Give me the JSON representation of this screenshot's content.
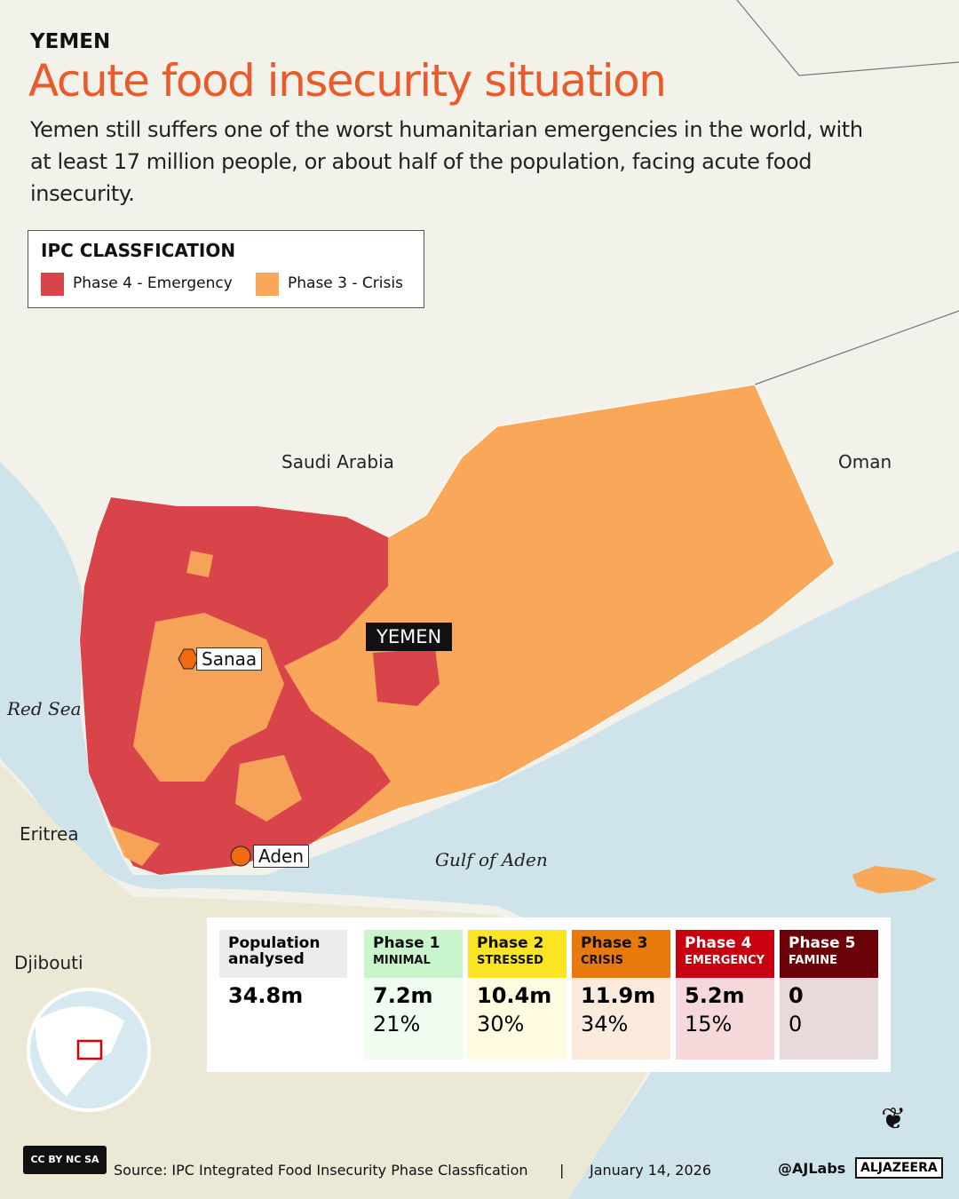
{
  "header": {
    "kicker": "YEMEN",
    "title": "Acute food insecurity situation",
    "subtitle": "Yemen still suffers one of the worst humanitarian emergencies in the world, with at least 17 million people, or about half of the population, facing acute food insecurity."
  },
  "legend": {
    "title": "IPC CLASSFICATION",
    "items": [
      {
        "label": "Phase 4 - Emergency",
        "color": "#d9434a"
      },
      {
        "label": "Phase 3 - Crisis",
        "color": "#f9a85a"
      }
    ]
  },
  "map": {
    "countries": [
      "Saudi Arabia",
      "Oman",
      "Eritrea",
      "Djibouti"
    ],
    "seas": [
      "Red Sea",
      "Gulf of Aden"
    ],
    "cities": [
      "Sanaa",
      "Aden"
    ],
    "focus_label": "YEMEN",
    "colors": {
      "sea": "#cfe3ea",
      "land": "#f1f0e6",
      "phase4": "#d9434a",
      "phase3": "#f9a85a"
    }
  },
  "stats": {
    "population": {
      "label": "Population analysed",
      "value": "34.8m"
    },
    "phases": [
      {
        "name": "Phase 1",
        "sub": "MINIMAL",
        "value": "7.2m",
        "pct": "21%",
        "head": "#c9f5cc",
        "body": "#effcef",
        "text": "#111"
      },
      {
        "name": "Phase 2",
        "sub": "STRESSED",
        "value": "10.4m",
        "pct": "30%",
        "head": "#fbe523",
        "body": "#fffbe0",
        "text": "#111"
      },
      {
        "name": "Phase 3",
        "sub": "CRISIS",
        "value": "11.9m",
        "pct": "34%",
        "head": "#e87a0d",
        "body": "#fcebdc",
        "text": "#111"
      },
      {
        "name": "Phase 4",
        "sub": "EMERGENCY",
        "value": "5.2m",
        "pct": "15%",
        "head": "#c8000f",
        "body": "#f6d8da",
        "text": "#fff"
      },
      {
        "name": "Phase 5",
        "sub": "FAMINE",
        "value": "0",
        "pct": "0",
        "head": "#6b0008",
        "body": "#e8dada",
        "text": "#fff"
      }
    ]
  },
  "footer": {
    "license": "CC BY NC SA",
    "source": "Source:  IPC Integrated Food Insecurity Phase Classfication",
    "separator": "|",
    "date": "January 14, 2026",
    "handle": "@AJLabs",
    "brand": "ALJAZEERA"
  }
}
